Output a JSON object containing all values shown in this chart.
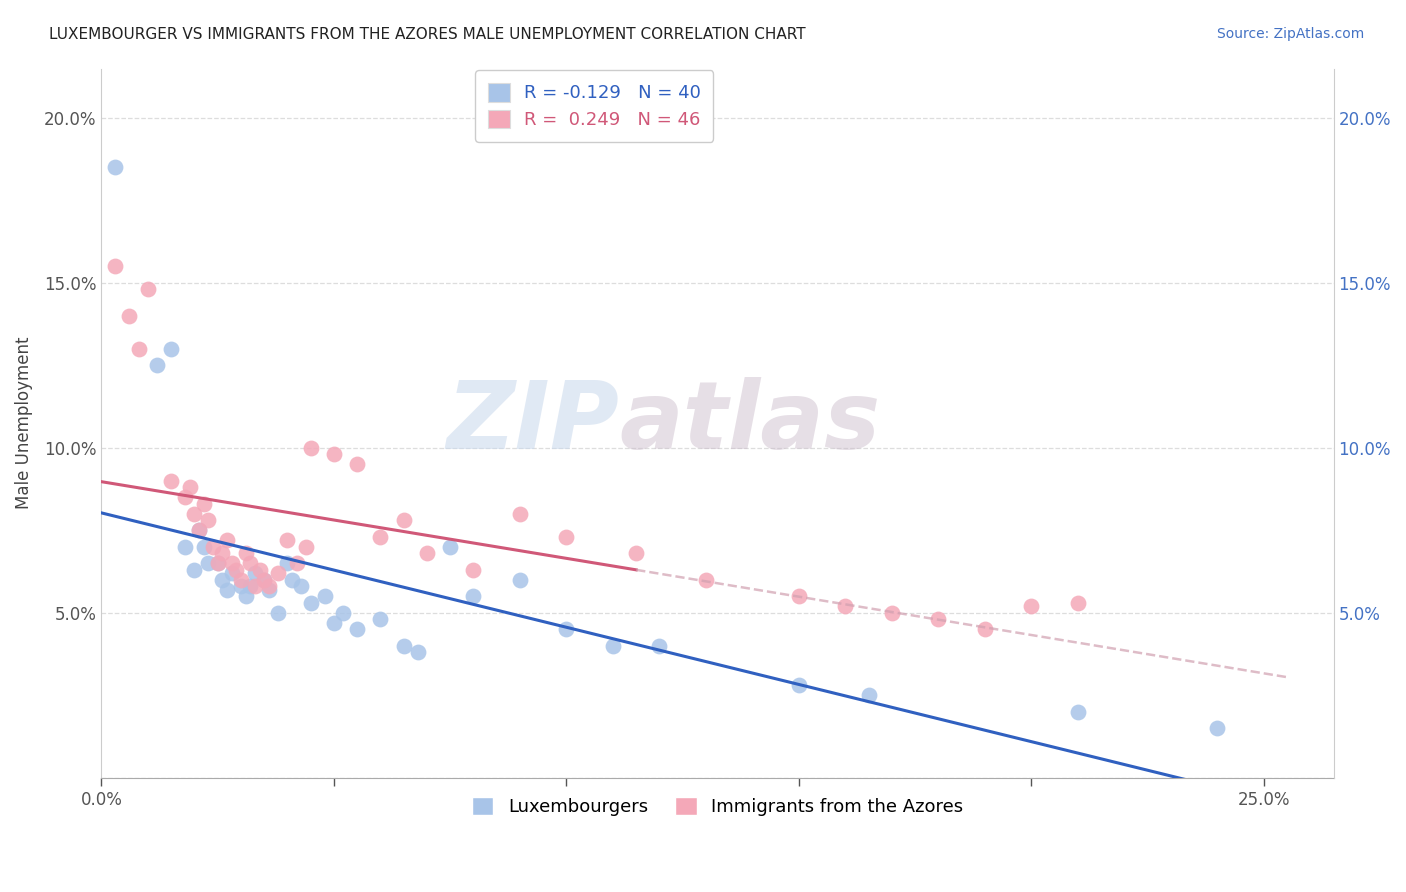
{
  "title": "LUXEMBOURGER VS IMMIGRANTS FROM THE AZORES MALE UNEMPLOYMENT CORRELATION CHART",
  "source": "Source: ZipAtlas.com",
  "ylabel": "Male Unemployment",
  "xlim": [
    0.0,
    0.265
  ],
  "ylim": [
    0.0,
    0.215
  ],
  "blue_R": -0.129,
  "blue_N": 40,
  "pink_R": 0.249,
  "pink_N": 46,
  "legend_label_blue": "Luxembourgers",
  "legend_label_pink": "Immigrants from the Azores",
  "watermark_zip": "ZIP",
  "watermark_atlas": "atlas",
  "blue_color": "#a8c4e8",
  "pink_color": "#f4a8b8",
  "blue_line_color": "#3060c0",
  "pink_line_color": "#d05878",
  "pink_dash_color": "#d0a0b0",
  "blue_scatter": [
    [
      0.003,
      0.185
    ],
    [
      0.012,
      0.125
    ],
    [
      0.015,
      0.13
    ],
    [
      0.018,
      0.07
    ],
    [
      0.02,
      0.063
    ],
    [
      0.021,
      0.075
    ],
    [
      0.022,
      0.07
    ],
    [
      0.023,
      0.065
    ],
    [
      0.025,
      0.065
    ],
    [
      0.026,
      0.06
    ],
    [
      0.027,
      0.057
    ],
    [
      0.028,
      0.062
    ],
    [
      0.03,
      0.058
    ],
    [
      0.031,
      0.055
    ],
    [
      0.032,
      0.058
    ],
    [
      0.033,
      0.062
    ],
    [
      0.035,
      0.06
    ],
    [
      0.036,
      0.057
    ],
    [
      0.038,
      0.05
    ],
    [
      0.04,
      0.065
    ],
    [
      0.041,
      0.06
    ],
    [
      0.043,
      0.058
    ],
    [
      0.045,
      0.053
    ],
    [
      0.048,
      0.055
    ],
    [
      0.05,
      0.047
    ],
    [
      0.052,
      0.05
    ],
    [
      0.055,
      0.045
    ],
    [
      0.06,
      0.048
    ],
    [
      0.065,
      0.04
    ],
    [
      0.068,
      0.038
    ],
    [
      0.075,
      0.07
    ],
    [
      0.08,
      0.055
    ],
    [
      0.09,
      0.06
    ],
    [
      0.1,
      0.045
    ],
    [
      0.11,
      0.04
    ],
    [
      0.12,
      0.04
    ],
    [
      0.15,
      0.028
    ],
    [
      0.165,
      0.025
    ],
    [
      0.21,
      0.02
    ],
    [
      0.24,
      0.015
    ]
  ],
  "pink_scatter": [
    [
      0.003,
      0.155
    ],
    [
      0.006,
      0.14
    ],
    [
      0.008,
      0.13
    ],
    [
      0.01,
      0.148
    ],
    [
      0.015,
      0.09
    ],
    [
      0.018,
      0.085
    ],
    [
      0.019,
      0.088
    ],
    [
      0.02,
      0.08
    ],
    [
      0.021,
      0.075
    ],
    [
      0.022,
      0.083
    ],
    [
      0.023,
      0.078
    ],
    [
      0.024,
      0.07
    ],
    [
      0.025,
      0.065
    ],
    [
      0.026,
      0.068
    ],
    [
      0.027,
      0.072
    ],
    [
      0.028,
      0.065
    ],
    [
      0.029,
      0.063
    ],
    [
      0.03,
      0.06
    ],
    [
      0.031,
      0.068
    ],
    [
      0.032,
      0.065
    ],
    [
      0.033,
      0.058
    ],
    [
      0.034,
      0.063
    ],
    [
      0.035,
      0.06
    ],
    [
      0.036,
      0.058
    ],
    [
      0.038,
      0.062
    ],
    [
      0.04,
      0.072
    ],
    [
      0.042,
      0.065
    ],
    [
      0.044,
      0.07
    ],
    [
      0.045,
      0.1
    ],
    [
      0.05,
      0.098
    ],
    [
      0.055,
      0.095
    ],
    [
      0.06,
      0.073
    ],
    [
      0.065,
      0.078
    ],
    [
      0.07,
      0.068
    ],
    [
      0.08,
      0.063
    ],
    [
      0.09,
      0.08
    ],
    [
      0.1,
      0.073
    ],
    [
      0.115,
      0.068
    ],
    [
      0.13,
      0.06
    ],
    [
      0.15,
      0.055
    ],
    [
      0.16,
      0.052
    ],
    [
      0.17,
      0.05
    ],
    [
      0.18,
      0.048
    ],
    [
      0.19,
      0.045
    ],
    [
      0.2,
      0.052
    ],
    [
      0.21,
      0.053
    ]
  ]
}
